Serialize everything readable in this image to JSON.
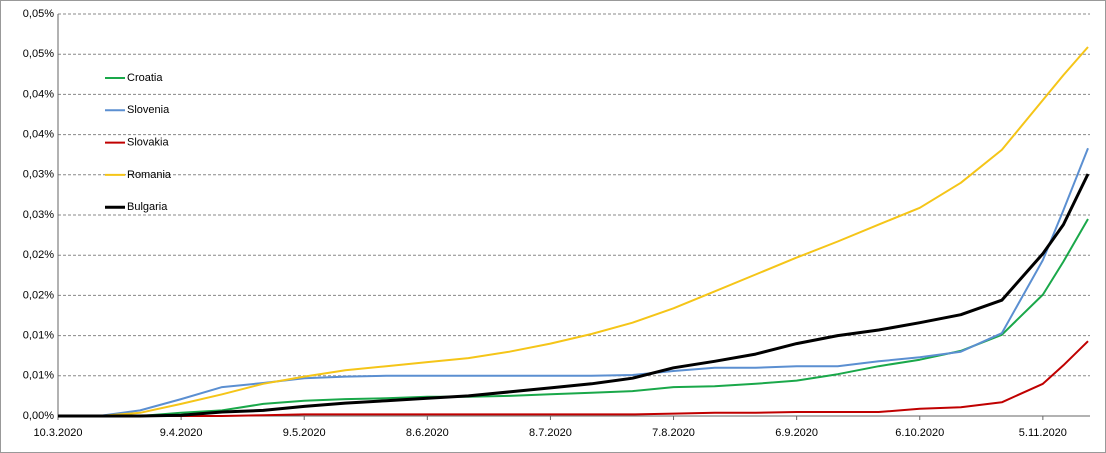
{
  "chart_data": {
    "type": "line",
    "x": [
      "10.3.2020",
      "20.3.2020",
      "30.3.2020",
      "9.4.2020",
      "19.4.2020",
      "29.4.2020",
      "9.5.2020",
      "19.5.2020",
      "29.5.2020",
      "8.6.2020",
      "18.6.2020",
      "28.6.2020",
      "8.7.2020",
      "18.7.2020",
      "28.7.2020",
      "7.8.2020",
      "17.8.2020",
      "27.8.2020",
      "6.9.2020",
      "16.9.2020",
      "26.9.2020",
      "6.10.2020",
      "16.10.2020",
      "26.10.2020",
      "5.11.2020",
      "10.11.2020",
      "16.11.2020"
    ],
    "xlim": [
      "10.3.2020",
      "16.11.2020"
    ],
    "xticks": [
      "10.3.2020",
      "9.4.2020",
      "9.5.2020",
      "8.6.2020",
      "8.7.2020",
      "7.8.2020",
      "6.9.2020",
      "6.10.2020",
      "5.11.2020"
    ],
    "ylim": [
      0,
      0.05
    ],
    "yticks": [
      {
        "value": 0,
        "label": "0,00%"
      },
      {
        "value": 0.005,
        "label": "0,01%"
      },
      {
        "value": 0.01,
        "label": "0,01%"
      },
      {
        "value": 0.015,
        "label": "0,02%"
      },
      {
        "value": 0.02,
        "label": "0,02%"
      },
      {
        "value": 0.025,
        "label": "0,03%"
      },
      {
        "value": 0.03,
        "label": "0,03%"
      },
      {
        "value": 0.035,
        "label": "0,04%"
      },
      {
        "value": 0.04,
        "label": "0,04%"
      },
      {
        "value": 0.045,
        "label": "0,05%"
      },
      {
        "value": 0.05,
        "label": "0,05%"
      }
    ],
    "grid": true,
    "legend": "upper-left",
    "series": [
      {
        "name": "Croatia",
        "color": "#1aa84a",
        "values": [
          0,
          0,
          0,
          0.0004,
          0.0007,
          0.0015,
          0.0019,
          0.0021,
          0.0022,
          0.0024,
          0.0024,
          0.0025,
          0.0027,
          0.0029,
          0.0031,
          0.0036,
          0.0037,
          0.004,
          0.0044,
          0.0052,
          0.0062,
          0.007,
          0.0081,
          0.0101,
          0.0151,
          0.0192,
          0.0245
        ]
      },
      {
        "name": "Slovenia",
        "color": "#5b8fd1",
        "values": [
          0,
          0,
          0.0007,
          0.0021,
          0.0036,
          0.0041,
          0.0047,
          0.0049,
          0.005,
          0.005,
          0.005,
          0.005,
          0.005,
          0.005,
          0.0051,
          0.0056,
          0.006,
          0.006,
          0.0062,
          0.0062,
          0.0068,
          0.0073,
          0.008,
          0.0103,
          0.0194,
          0.0256,
          0.0333
        ]
      },
      {
        "name": "Slovakia",
        "color": "#c00000",
        "values": [
          0,
          0,
          0,
          0,
          0,
          0.0001,
          0.0002,
          0.0002,
          0.0002,
          0.0002,
          0.0002,
          0.0002,
          0.0002,
          0.0002,
          0.0002,
          0.0003,
          0.0004,
          0.0004,
          0.0005,
          0.0005,
          0.0005,
          0.0009,
          0.0011,
          0.0017,
          0.004,
          0.0063,
          0.0093
        ]
      },
      {
        "name": "Romania",
        "color": "#f5c518",
        "values": [
          0,
          0,
          0.0004,
          0.0015,
          0.0027,
          0.004,
          0.0049,
          0.0057,
          0.0062,
          0.0067,
          0.0072,
          0.008,
          0.009,
          0.0102,
          0.0116,
          0.0134,
          0.0155,
          0.0176,
          0.0197,
          0.0217,
          0.0238,
          0.0259,
          0.029,
          0.0331,
          0.0393,
          0.0424,
          0.0459
        ]
      },
      {
        "name": "Bulgaria",
        "color": "#000000",
        "values": [
          0,
          0,
          0,
          0.0001,
          0.0005,
          0.0007,
          0.0012,
          0.0016,
          0.0019,
          0.0022,
          0.0025,
          0.003,
          0.0035,
          0.004,
          0.0047,
          0.006,
          0.0068,
          0.0077,
          0.009,
          0.01,
          0.0107,
          0.0116,
          0.0126,
          0.0144,
          0.0202,
          0.0238,
          0.0301
        ]
      }
    ]
  }
}
